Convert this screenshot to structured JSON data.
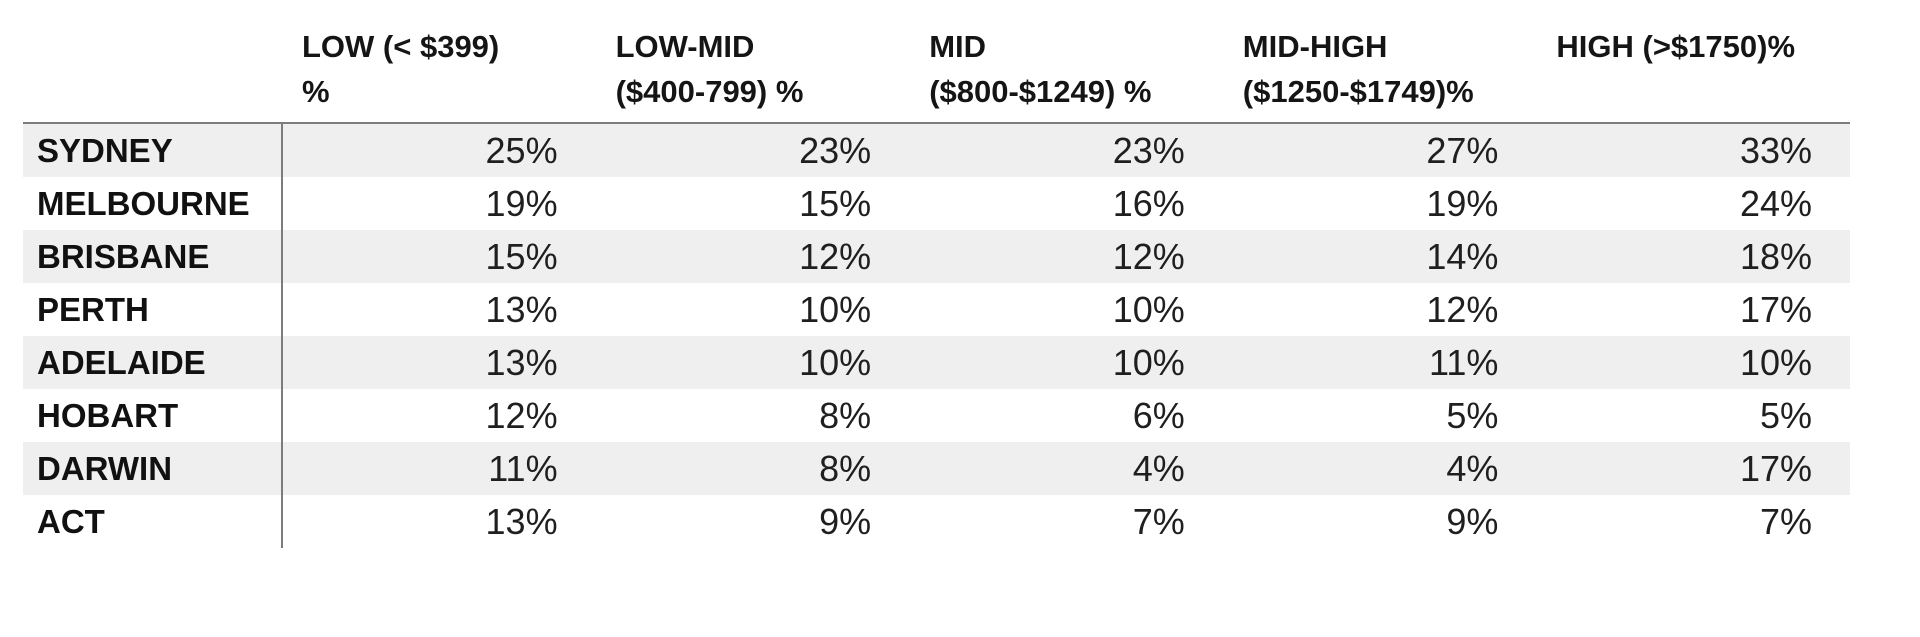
{
  "colors": {
    "stripe": "#efefef",
    "divider": "#7c7c7c",
    "header_text": "#151515",
    "value_text": "#1f1f1f",
    "background": "#ffffff"
  },
  "table": {
    "headers": [
      {
        "line1": "LOW (< $399)",
        "line2": "%"
      },
      {
        "line1": "LOW-MID",
        "line2": "($400-799) %"
      },
      {
        "line1": "MID",
        "line2": "($800-$1249) %"
      },
      {
        "line1": "MID-HIGH",
        "line2": "($1250-$1749)%"
      },
      {
        "line1": "HIGH (>$1750)%",
        "line2": ""
      }
    ],
    "rows": [
      {
        "city": "SYDNEY",
        "values": [
          "25%",
          "23%",
          "23%",
          "27%",
          "33%"
        ]
      },
      {
        "city": "MELBOURNE",
        "values": [
          "19%",
          "15%",
          "16%",
          "19%",
          "24%"
        ]
      },
      {
        "city": "BRISBANE",
        "values": [
          "15%",
          "12%",
          "12%",
          "14%",
          "18%"
        ]
      },
      {
        "city": "PERTH",
        "values": [
          "13%",
          "10%",
          "10%",
          "12%",
          "17%"
        ]
      },
      {
        "city": "ADELAIDE",
        "values": [
          "13%",
          "10%",
          "10%",
          "11%",
          "10%"
        ]
      },
      {
        "city": "HOBART",
        "values": [
          "12%",
          "8%",
          "6%",
          "5%",
          "5%"
        ]
      },
      {
        "city": "DARWIN",
        "values": [
          "11%",
          "8%",
          "4%",
          "4%",
          "17%"
        ]
      },
      {
        "city": "ACT",
        "values": [
          "13%",
          "9%",
          "7%",
          "9%",
          "7%"
        ]
      }
    ]
  },
  "chart_data": {
    "type": "table",
    "title": "",
    "columns": [
      "LOW (< $399) %",
      "LOW-MID ($400-799) %",
      "MID ($800-$1249) %",
      "MID-HIGH ($1250-$1749)%",
      "HIGH (>$1750)%"
    ],
    "rows": [
      "SYDNEY",
      "MELBOURNE",
      "BRISBANE",
      "PERTH",
      "ADELAIDE",
      "HOBART",
      "DARWIN",
      "ACT"
    ],
    "values_pct": [
      [
        25,
        23,
        23,
        27,
        33
      ],
      [
        19,
        15,
        16,
        19,
        24
      ],
      [
        15,
        12,
        12,
        14,
        18
      ],
      [
        13,
        10,
        10,
        12,
        17
      ],
      [
        13,
        10,
        10,
        11,
        10
      ],
      [
        12,
        8,
        6,
        5,
        5
      ],
      [
        11,
        8,
        4,
        4,
        17
      ],
      [
        13,
        9,
        7,
        9,
        7
      ]
    ]
  }
}
